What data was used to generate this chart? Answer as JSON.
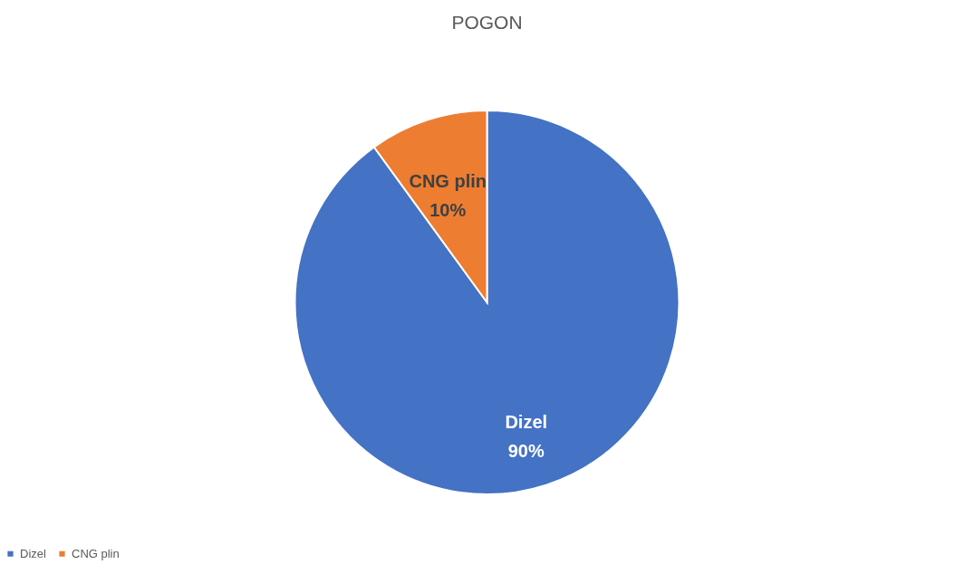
{
  "chart_data": {
    "type": "pie",
    "title": "POGON",
    "categories": [
      "Dizel",
      "CNG plin"
    ],
    "values": [
      90,
      10
    ],
    "colors": [
      "#4472c4",
      "#ed7d31"
    ],
    "value_labels": [
      "90%",
      "10%"
    ],
    "legend": "bottom"
  }
}
